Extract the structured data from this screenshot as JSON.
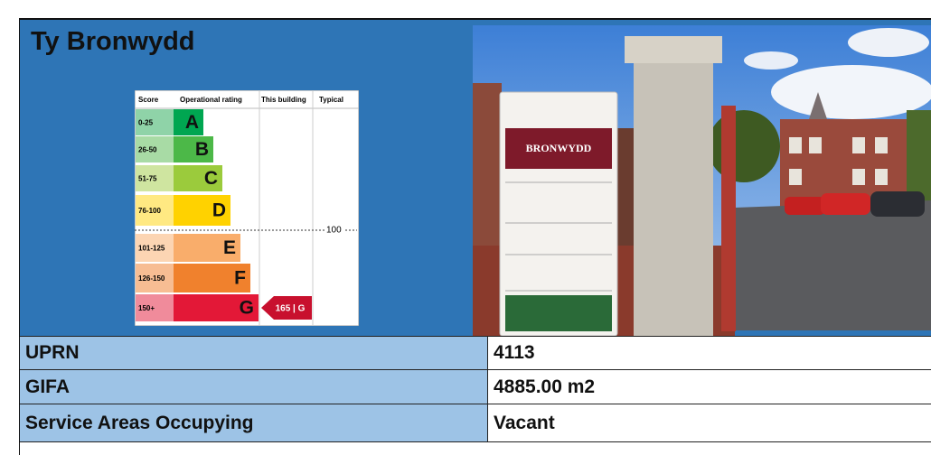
{
  "header": {
    "title": "Ty Bronwydd"
  },
  "rating_chart": {
    "headers": [
      "Score",
      "Operational rating",
      "This building",
      "Typical"
    ],
    "bands": [
      {
        "score": "0-25",
        "letter": "A",
        "color": "#00a651",
        "tint": "#8fd3a8"
      },
      {
        "score": "26-50",
        "letter": "B",
        "color": "#4cb848",
        "tint": "#a8dba5"
      },
      {
        "score": "51-75",
        "letter": "C",
        "color": "#9bcb3c",
        "tint": "#cfe5a0"
      },
      {
        "score": "76-100",
        "letter": "D",
        "color": "#ffd200",
        "tint": "#ffe982"
      },
      {
        "score": "101-125",
        "letter": "E",
        "color": "#f9ad6b",
        "tint": "#fcd5b3"
      },
      {
        "score": "126-150",
        "letter": "F",
        "color": "#f0812d",
        "tint": "#f7bd93"
      },
      {
        "score": "150+",
        "letter": "G",
        "color": "#e31837",
        "tint": "#f08b9b"
      }
    ],
    "typical_label": "100",
    "this_building_label": "165 | G"
  },
  "photo": {
    "sign_text": "BRONWYDD"
  },
  "table": {
    "rows": [
      [
        "UPRN",
        "4113"
      ],
      [
        "GIFA",
        "4885.00 m2"
      ],
      [
        "Service Areas Occupying",
        "Vacant"
      ]
    ]
  }
}
